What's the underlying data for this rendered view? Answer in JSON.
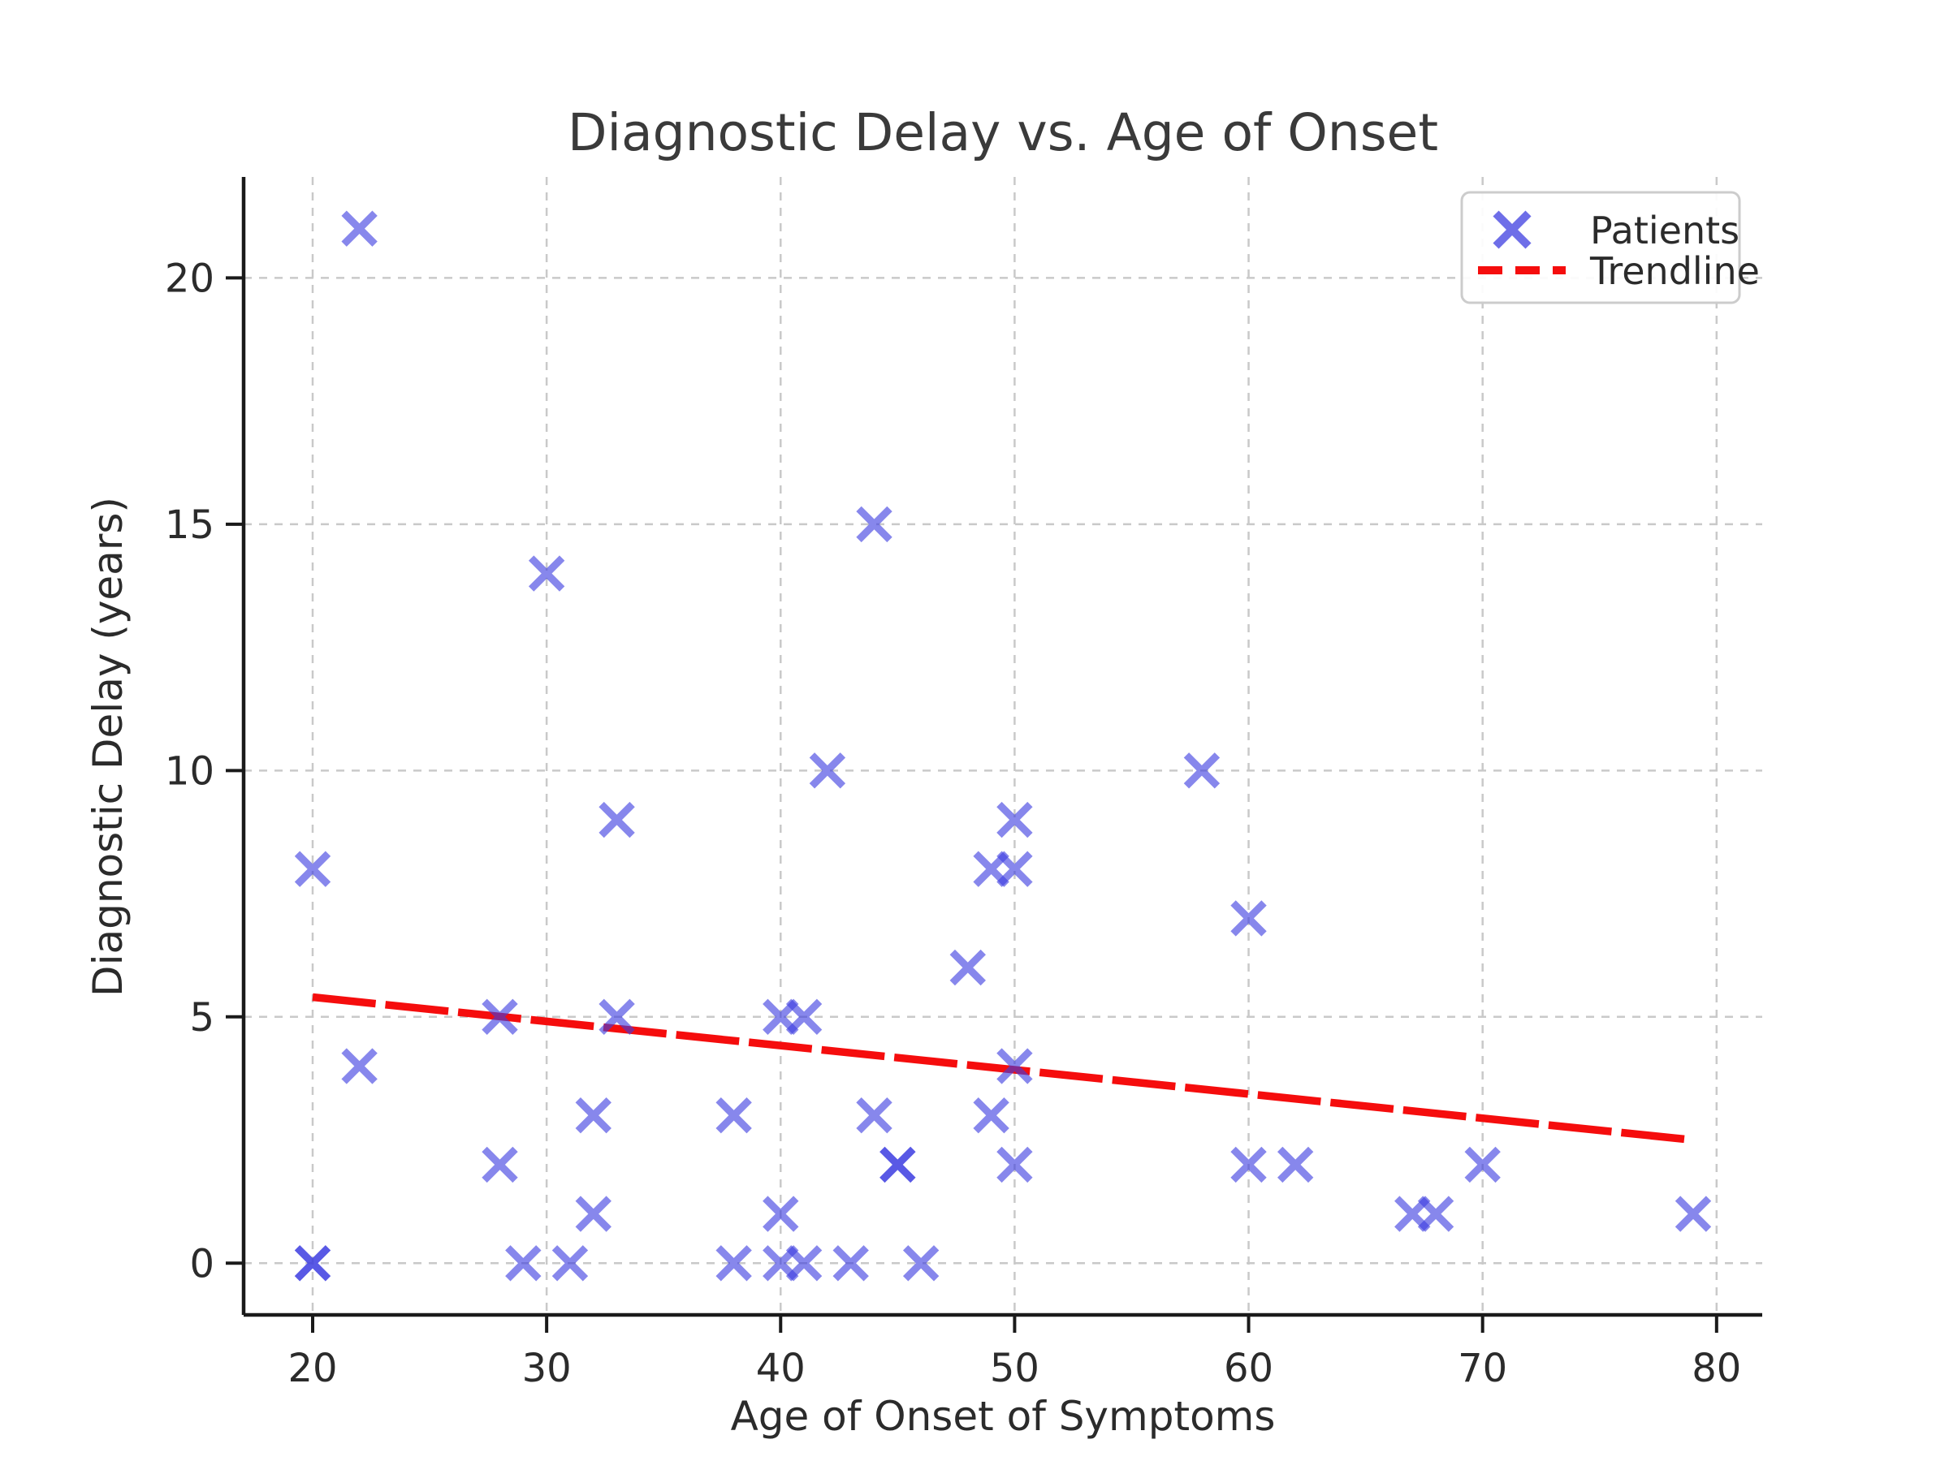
{
  "chart": {
    "colors": {
      "marker": "#3d3de0",
      "marker_opacity": 0.62,
      "trendline": "#f50d0d",
      "grid": "#c9c9c9",
      "spine": "#1a1a1a",
      "tick_text": "#2b2b2b",
      "label_text": "#2b2b2b",
      "title_text": "#3a3a3a",
      "legend_border": "#cccccc",
      "legend_bg": "#ffffff"
    }
  },
  "chart_data": {
    "type": "scatter",
    "title": "Diagnostic Delay vs. Age of Onset",
    "xlabel": "Age of Onset of Symptoms",
    "ylabel": "Diagnostic Delay (years)",
    "x_ticks": [
      20,
      30,
      40,
      50,
      60,
      70,
      80
    ],
    "y_ticks": [
      0,
      5,
      10,
      15,
      20
    ],
    "xlim": [
      17.05,
      81.95
    ],
    "ylim": [
      -1.05,
      22.05
    ],
    "grid": "dashed",
    "legend": {
      "position": "upper right",
      "entries": [
        {
          "label": "Patients",
          "marker": "x"
        },
        {
          "label": "Trendline",
          "marker": "dashed-line"
        }
      ]
    },
    "series": [
      {
        "name": "Patients",
        "type": "scatter",
        "marker": "x",
        "points": [
          [
            20,
            8
          ],
          [
            20,
            0
          ],
          [
            20,
            0
          ],
          [
            22,
            21
          ],
          [
            22,
            4
          ],
          [
            28,
            5
          ],
          [
            28,
            2
          ],
          [
            29,
            0
          ],
          [
            30,
            14
          ],
          [
            31,
            0
          ],
          [
            32,
            3
          ],
          [
            32,
            1
          ],
          [
            33,
            9
          ],
          [
            33,
            5
          ],
          [
            38,
            3
          ],
          [
            38,
            0
          ],
          [
            40,
            5
          ],
          [
            40,
            1
          ],
          [
            40,
            0
          ],
          [
            41,
            5
          ],
          [
            41,
            0
          ],
          [
            42,
            10
          ],
          [
            43,
            0
          ],
          [
            44,
            15
          ],
          [
            44,
            3
          ],
          [
            45,
            2
          ],
          [
            45,
            2
          ],
          [
            46,
            0
          ],
          [
            48,
            6
          ],
          [
            49,
            8
          ],
          [
            49,
            3
          ],
          [
            50,
            9
          ],
          [
            50,
            8
          ],
          [
            50,
            4
          ],
          [
            50,
            2
          ],
          [
            58,
            10
          ],
          [
            60,
            7
          ],
          [
            60,
            2
          ],
          [
            62,
            2
          ],
          [
            67,
            1
          ],
          [
            68,
            1
          ],
          [
            70,
            2
          ],
          [
            79,
            1
          ]
        ]
      },
      {
        "name": "Trendline",
        "type": "line",
        "style": "dashed",
        "endpoints": [
          [
            20,
            5.4
          ],
          [
            79,
            2.5
          ]
        ]
      }
    ]
  }
}
